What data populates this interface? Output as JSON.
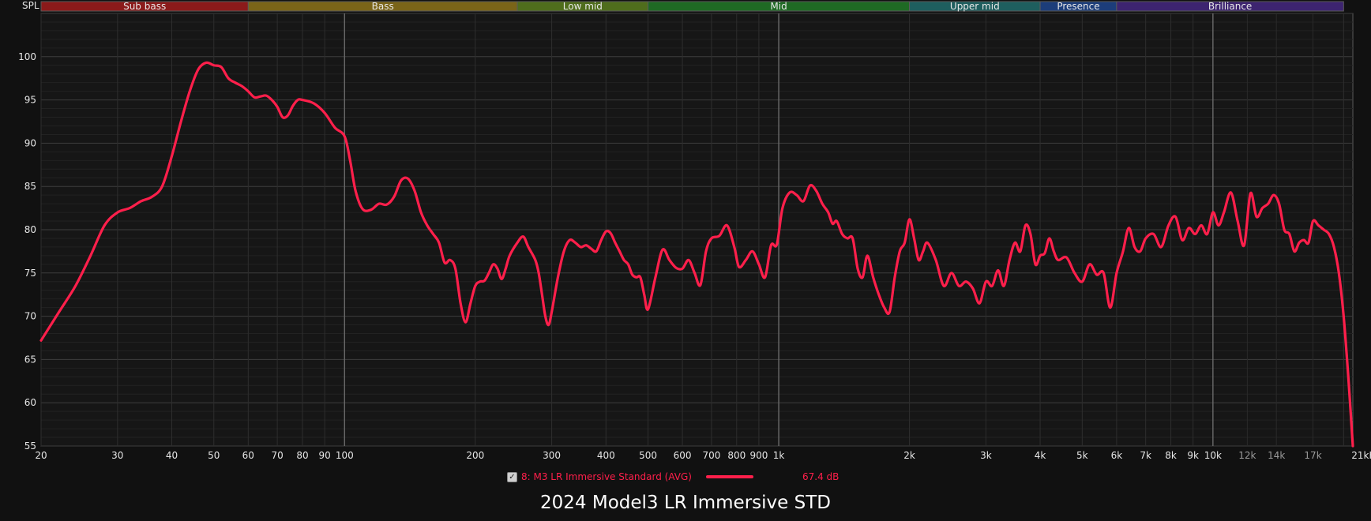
{
  "chart_data": {
    "type": "line",
    "title": "2024 Model3 LR Immersive STD",
    "ylabel": "SPL",
    "x_scale": "log",
    "xlim": [
      20,
      21000
    ],
    "ylim": [
      55,
      105
    ],
    "grid": true,
    "y_ticks": [
      55,
      60,
      65,
      70,
      75,
      80,
      85,
      90,
      95,
      100
    ],
    "x_ticks": [
      {
        "value": 20,
        "label": "20"
      },
      {
        "value": 30,
        "label": "30"
      },
      {
        "value": 40,
        "label": "40"
      },
      {
        "value": 50,
        "label": "50"
      },
      {
        "value": 60,
        "label": "60"
      },
      {
        "value": 70,
        "label": "70"
      },
      {
        "value": 80,
        "label": "80"
      },
      {
        "value": 90,
        "label": "90"
      },
      {
        "value": 100,
        "label": "100"
      },
      {
        "value": 200,
        "label": "200"
      },
      {
        "value": 300,
        "label": "300"
      },
      {
        "value": 400,
        "label": "400"
      },
      {
        "value": 500,
        "label": "500"
      },
      {
        "value": 600,
        "label": "600"
      },
      {
        "value": 700,
        "label": "700"
      },
      {
        "value": 800,
        "label": "800"
      },
      {
        "value": 900,
        "label": "900"
      },
      {
        "value": 1000,
        "label": "1k"
      },
      {
        "value": 2000,
        "label": "2k"
      },
      {
        "value": 3000,
        "label": "3k"
      },
      {
        "value": 4000,
        "label": "4k"
      },
      {
        "value": 5000,
        "label": "5k"
      },
      {
        "value": 6000,
        "label": "6k"
      },
      {
        "value": 7000,
        "label": "7k"
      },
      {
        "value": 8000,
        "label": "8k"
      },
      {
        "value": 9000,
        "label": "9k"
      },
      {
        "value": 10000,
        "label": "10k"
      },
      {
        "value": 12000,
        "label": "12k",
        "dim": true
      },
      {
        "value": 14000,
        "label": "14k",
        "dim": true
      },
      {
        "value": 17000,
        "label": "17k",
        "dim": true
      },
      {
        "value": 21000,
        "label": "21kHz"
      }
    ],
    "bands": [
      {
        "name": "Sub bass",
        "from": 20,
        "to": 60,
        "color": "#8b1a1a"
      },
      {
        "name": "Bass",
        "from": 60,
        "to": 250,
        "color": "#7a6418"
      },
      {
        "name": "Low mid",
        "from": 250,
        "to": 500,
        "color": "#4f6d1c"
      },
      {
        "name": "Mid",
        "from": 500,
        "to": 2000,
        "color": "#1f6a24"
      },
      {
        "name": "Upper mid",
        "from": 2000,
        "to": 4000,
        "color": "#1e5e5e"
      },
      {
        "name": "Presence",
        "from": 4000,
        "to": 6000,
        "color": "#1c3d7a"
      },
      {
        "name": "Brilliance",
        "from": 6000,
        "to": 20000,
        "color": "#3d2470"
      }
    ],
    "series": [
      {
        "name": "8: M3 LR Immersive Standard (AVG)",
        "color": "#ff1f4b",
        "points": [
          [
            20,
            67.2
          ],
          [
            22,
            70.5
          ],
          [
            24,
            73.5
          ],
          [
            26,
            77
          ],
          [
            28,
            80.5
          ],
          [
            30,
            82
          ],
          [
            32,
            82.5
          ],
          [
            34,
            83.3
          ],
          [
            36,
            83.8
          ],
          [
            38,
            85
          ],
          [
            40,
            88.5
          ],
          [
            42,
            92.5
          ],
          [
            44,
            96
          ],
          [
            46,
            98.5
          ],
          [
            48,
            99.3
          ],
          [
            50,
            99
          ],
          [
            52,
            98.8
          ],
          [
            54,
            97.5
          ],
          [
            56,
            97
          ],
          [
            58,
            96.6
          ],
          [
            60,
            96
          ],
          [
            62,
            95.3
          ],
          [
            64,
            95.4
          ],
          [
            66,
            95.5
          ],
          [
            68,
            95
          ],
          [
            70,
            94.2
          ],
          [
            72,
            93
          ],
          [
            74,
            93.2
          ],
          [
            76,
            94.3
          ],
          [
            78,
            95
          ],
          [
            80,
            95
          ],
          [
            85,
            94.6
          ],
          [
            90,
            93.5
          ],
          [
            95,
            91.8
          ],
          [
            100,
            90.8
          ],
          [
            103,
            88
          ],
          [
            106,
            84.5
          ],
          [
            110,
            82.4
          ],
          [
            115,
            82.3
          ],
          [
            120,
            83
          ],
          [
            125,
            82.9
          ],
          [
            130,
            83.8
          ],
          [
            135,
            85.7
          ],
          [
            140,
            85.9
          ],
          [
            145,
            84.5
          ],
          [
            150,
            82
          ],
          [
            155,
            80.5
          ],
          [
            160,
            79.5
          ],
          [
            165,
            78.5
          ],
          [
            170,
            76.2
          ],
          [
            175,
            76.5
          ],
          [
            180,
            75.5
          ],
          [
            185,
            71.5
          ],
          [
            190,
            69.3
          ],
          [
            195,
            71.5
          ],
          [
            200,
            73.5
          ],
          [
            205,
            74
          ],
          [
            210,
            74.1
          ],
          [
            215,
            75
          ],
          [
            220,
            76
          ],
          [
            225,
            75.5
          ],
          [
            230,
            74.3
          ],
          [
            235,
            75.5
          ],
          [
            240,
            77
          ],
          [
            250,
            78.5
          ],
          [
            258,
            79.2
          ],
          [
            265,
            78
          ],
          [
            275,
            76.5
          ],
          [
            280,
            75
          ],
          [
            285,
            72.5
          ],
          [
            290,
            70
          ],
          [
            295,
            69
          ],
          [
            300,
            70.5
          ],
          [
            310,
            74.5
          ],
          [
            320,
            77.5
          ],
          [
            330,
            78.8
          ],
          [
            340,
            78.5
          ],
          [
            350,
            78
          ],
          [
            360,
            78.2
          ],
          [
            370,
            77.8
          ],
          [
            380,
            77.5
          ],
          [
            390,
            78.8
          ],
          [
            400,
            79.8
          ],
          [
            410,
            79.6
          ],
          [
            420,
            78.5
          ],
          [
            430,
            77.5
          ],
          [
            440,
            76.5
          ],
          [
            450,
            76
          ],
          [
            460,
            74.8
          ],
          [
            470,
            74.5
          ],
          [
            480,
            74.5
          ],
          [
            490,
            72.5
          ],
          [
            500,
            70.8
          ],
          [
            520,
            74.5
          ],
          [
            540,
            77.7
          ],
          [
            560,
            76.5
          ],
          [
            580,
            75.6
          ],
          [
            600,
            75.5
          ],
          [
            620,
            76.5
          ],
          [
            640,
            75
          ],
          [
            660,
            73.6
          ],
          [
            680,
            77.5
          ],
          [
            700,
            79
          ],
          [
            730,
            79.3
          ],
          [
            760,
            80.5
          ],
          [
            790,
            78
          ],
          [
            810,
            75.7
          ],
          [
            840,
            76.5
          ],
          [
            870,
            77.5
          ],
          [
            900,
            76
          ],
          [
            930,
            74.5
          ],
          [
            960,
            78.2
          ],
          [
            990,
            78.3
          ],
          [
            1020,
            82.5
          ],
          [
            1060,
            84.3
          ],
          [
            1100,
            84
          ],
          [
            1140,
            83.3
          ],
          [
            1180,
            85.1
          ],
          [
            1220,
            84.5
          ],
          [
            1260,
            83
          ],
          [
            1300,
            82
          ],
          [
            1330,
            80.7
          ],
          [
            1360,
            81
          ],
          [
            1400,
            79.5
          ],
          [
            1440,
            79
          ],
          [
            1480,
            79
          ],
          [
            1520,
            75.5
          ],
          [
            1560,
            74.5
          ],
          [
            1600,
            77
          ],
          [
            1650,
            74.5
          ],
          [
            1700,
            72.5
          ],
          [
            1750,
            71
          ],
          [
            1800,
            70.5
          ],
          [
            1850,
            74.5
          ],
          [
            1900,
            77.5
          ],
          [
            1950,
            78.5
          ],
          [
            2000,
            81.2
          ],
          [
            2050,
            79
          ],
          [
            2100,
            76.5
          ],
          [
            2150,
            77.5
          ],
          [
            2200,
            78.5
          ],
          [
            2300,
            76.5
          ],
          [
            2400,
            73.5
          ],
          [
            2500,
            75
          ],
          [
            2600,
            73.5
          ],
          [
            2700,
            74
          ],
          [
            2800,
            73.2
          ],
          [
            2900,
            71.5
          ],
          [
            3000,
            74
          ],
          [
            3100,
            73.5
          ],
          [
            3200,
            75.3
          ],
          [
            3300,
            73.5
          ],
          [
            3400,
            76.5
          ],
          [
            3500,
            78.5
          ],
          [
            3600,
            77.5
          ],
          [
            3700,
            80.5
          ],
          [
            3800,
            79.5
          ],
          [
            3900,
            76
          ],
          [
            4000,
            77
          ],
          [
            4100,
            77.3
          ],
          [
            4200,
            79
          ],
          [
            4300,
            77.5
          ],
          [
            4400,
            76.5
          ],
          [
            4600,
            76.8
          ],
          [
            4800,
            75
          ],
          [
            5000,
            74
          ],
          [
            5200,
            76
          ],
          [
            5400,
            74.8
          ],
          [
            5600,
            75
          ],
          [
            5800,
            71
          ],
          [
            6000,
            75
          ],
          [
            6200,
            77.4
          ],
          [
            6400,
            80.2
          ],
          [
            6600,
            78
          ],
          [
            6800,
            77.5
          ],
          [
            7000,
            79
          ],
          [
            7300,
            79.5
          ],
          [
            7600,
            78
          ],
          [
            7900,
            80.5
          ],
          [
            8200,
            81.5
          ],
          [
            8500,
            78.8
          ],
          [
            8800,
            80.2
          ],
          [
            9100,
            79.5
          ],
          [
            9400,
            80.5
          ],
          [
            9700,
            79.5
          ],
          [
            10000,
            82
          ],
          [
            10300,
            80.5
          ],
          [
            10600,
            82
          ],
          [
            11000,
            84.3
          ],
          [
            11400,
            81
          ],
          [
            11800,
            78.2
          ],
          [
            12200,
            84.2
          ],
          [
            12600,
            81.5
          ],
          [
            13000,
            82.5
          ],
          [
            13400,
            83
          ],
          [
            13800,
            84
          ],
          [
            14200,
            83
          ],
          [
            14600,
            80
          ],
          [
            15000,
            79.5
          ],
          [
            15400,
            77.5
          ],
          [
            15800,
            78.5
          ],
          [
            16200,
            78.8
          ],
          [
            16600,
            78.5
          ],
          [
            17000,
            81
          ],
          [
            17500,
            80.5
          ],
          [
            18000,
            80
          ],
          [
            18500,
            79.5
          ],
          [
            19000,
            78
          ],
          [
            19500,
            75
          ],
          [
            20000,
            70
          ],
          [
            20500,
            63
          ],
          [
            21000,
            55
          ]
        ]
      }
    ]
  },
  "legend": {
    "checkbox_mark": "✓",
    "series_label": "8: M3 LR Immersive Standard (AVG)",
    "value": "67.4 dB"
  }
}
